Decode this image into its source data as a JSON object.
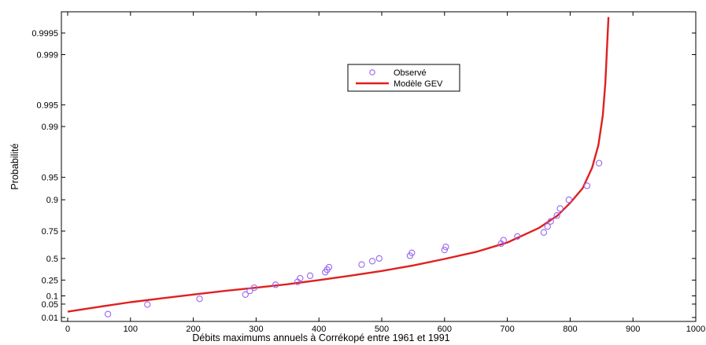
{
  "chart_data": {
    "type": "scatter",
    "title": "",
    "xlabel": "Débits maximums annuels à Corrékopé entre 1961 et 1991",
    "ylabel": "Probabilité",
    "xlim": [
      0,
      1000
    ],
    "x_ticks": [
      0,
      100,
      200,
      300,
      400,
      500,
      600,
      700,
      800,
      900,
      1000
    ],
    "x_tick_labels": [
      "0",
      "100",
      "200",
      "300",
      "400",
      "500",
      "600",
      "700",
      "800",
      "900",
      "1000"
    ],
    "y_scale": "gumbel-probability",
    "y_ticks": [
      0.01,
      0.05,
      0.1,
      0.25,
      0.5,
      0.75,
      0.9,
      0.95,
      0.99,
      0.995,
      0.999,
      0.9995
    ],
    "y_tick_labels": [
      "0.01",
      "0.05",
      "0.1",
      "0.25",
      "0.5",
      "0.75",
      "0.9",
      "0.95",
      "0.99",
      "0.995",
      "0.999",
      "0.9995"
    ],
    "grid": false,
    "legend_position": "top-center",
    "series": [
      {
        "name": "Observé",
        "type": "scatter",
        "color": "#9966ee",
        "points": [
          [
            64,
            0.016
          ],
          [
            127,
            0.048
          ],
          [
            210,
            0.08
          ],
          [
            283,
            0.11
          ],
          [
            290,
            0.14
          ],
          [
            297,
            0.17
          ],
          [
            331,
            0.2
          ],
          [
            366,
            0.23
          ],
          [
            370,
            0.27
          ],
          [
            386,
            0.3
          ],
          [
            410,
            0.34
          ],
          [
            413,
            0.37
          ],
          [
            416,
            0.4
          ],
          [
            468,
            0.43
          ],
          [
            485,
            0.47
          ],
          [
            496,
            0.5
          ],
          [
            545,
            0.53
          ],
          [
            548,
            0.56
          ],
          [
            600,
            0.59
          ],
          [
            602,
            0.62
          ],
          [
            690,
            0.65
          ],
          [
            694,
            0.68
          ],
          [
            716,
            0.71
          ],
          [
            758,
            0.74
          ],
          [
            764,
            0.78
          ],
          [
            769,
            0.81
          ],
          [
            779,
            0.84
          ],
          [
            784,
            0.87
          ],
          [
            798,
            0.9
          ],
          [
            827,
            0.935
          ],
          [
            846,
            0.968
          ]
        ]
      },
      {
        "name": "Modèle GEV",
        "type": "line",
        "color": "#e02020",
        "points": [
          [
            0,
            0.022
          ],
          [
            50,
            0.038
          ],
          [
            100,
            0.06
          ],
          [
            150,
            0.083
          ],
          [
            200,
            0.11
          ],
          [
            250,
            0.14
          ],
          [
            300,
            0.17
          ],
          [
            350,
            0.205
          ],
          [
            400,
            0.25
          ],
          [
            450,
            0.3
          ],
          [
            500,
            0.355
          ],
          [
            550,
            0.42
          ],
          [
            600,
            0.495
          ],
          [
            650,
            0.57
          ],
          [
            700,
            0.66
          ],
          [
            750,
            0.77
          ],
          [
            780,
            0.84
          ],
          [
            800,
            0.89
          ],
          [
            820,
            0.93
          ],
          [
            835,
            0.963
          ],
          [
            845,
            0.982
          ],
          [
            852,
            0.993
          ],
          [
            856,
            0.9975
          ],
          [
            859,
            0.9993
          ],
          [
            861,
            0.9997
          ]
        ]
      }
    ]
  }
}
